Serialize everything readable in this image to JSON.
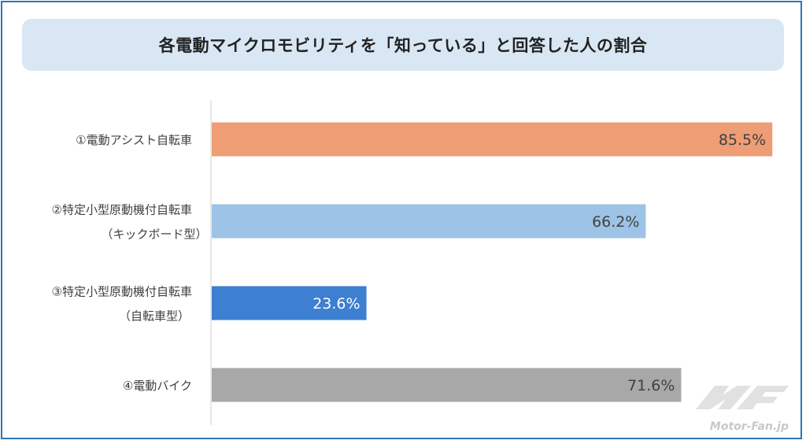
{
  "title": "各電動マイクロモビリティを「知っている」と回答した人の割合",
  "chart_data": {
    "type": "bar",
    "orientation": "horizontal",
    "title": "各電動マイクロモビリティを「知っている」と回答した人の割合",
    "categories": [
      [
        "①電動アシスト自転車"
      ],
      [
        "②特定小型原動機付自転車",
        "（キックボード型）"
      ],
      [
        "③特定小型原動機付自転車",
        "（自転車型）"
      ],
      [
        "④電動バイク"
      ]
    ],
    "values": [
      85.5,
      66.2,
      23.6,
      71.6
    ],
    "labels": [
      "85.5%",
      "66.2%",
      "23.6%",
      "71.6%"
    ],
    "colors": [
      "#ee9d74",
      "#9dc3e6",
      "#3d7fd0",
      "#a8a8a8"
    ],
    "label_colors": [
      "#404040",
      "#404040",
      "#ffffff",
      "#404040"
    ],
    "xlim": [
      0,
      100
    ],
    "grid": false,
    "legend": "none"
  },
  "watermark": {
    "text": "Motor-Fan.jp",
    "logo": "MF"
  }
}
